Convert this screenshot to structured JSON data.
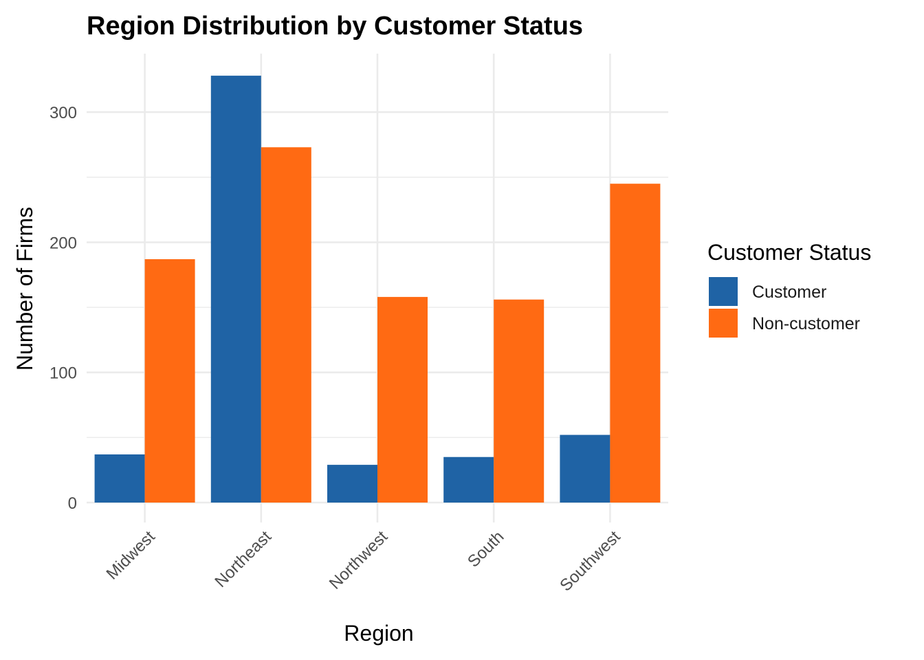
{
  "chart_data": {
    "type": "bar",
    "title": "Region Distribution by Customer Status",
    "xlabel": "Region",
    "ylabel": "Number of Firms",
    "categories": [
      "Midwest",
      "Northeast",
      "Northwest",
      "South",
      "Southwest"
    ],
    "series": [
      {
        "name": "Customer",
        "color": "#1f63a5",
        "values": [
          37,
          328,
          29,
          35,
          52
        ]
      },
      {
        "name": "Non-customer",
        "color": "#ff6a13",
        "values": [
          187,
          273,
          158,
          156,
          245
        ]
      }
    ],
    "ylim": [
      0,
      345
    ],
    "yticks": [
      0,
      100,
      200,
      300
    ],
    "grid": true,
    "legend": {
      "title": "Customer Status",
      "position": "right"
    }
  }
}
